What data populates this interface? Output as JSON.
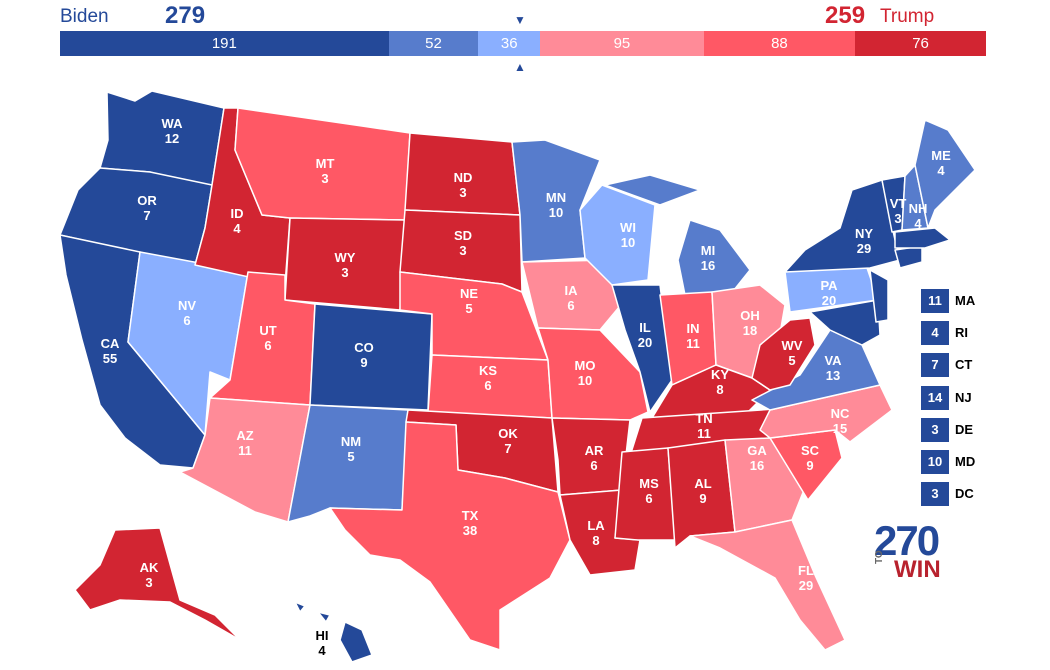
{
  "header": {
    "left_candidate": "Biden",
    "left_total": "279",
    "right_candidate": "Trump",
    "right_total": "259",
    "marker_top": "▼",
    "marker_bottom": "▲"
  },
  "colors": {
    "safe_d": "#244999",
    "likely_d": "#577CCC",
    "leans_d": "#8AAFFF",
    "leans_r": "#FF8B98",
    "likely_r": "#FF5865",
    "safe_r": "#D22532"
  },
  "bar": [
    {
      "label": "191",
      "value": 191,
      "category": "safe_d"
    },
    {
      "label": "52",
      "value": 52,
      "category": "likely_d"
    },
    {
      "label": "36",
      "value": 36,
      "category": "leans_d"
    },
    {
      "label": "95",
      "value": 95,
      "category": "leans_r"
    },
    {
      "label": "88",
      "value": 88,
      "category": "likely_r"
    },
    {
      "label": "76",
      "value": 76,
      "category": "safe_r"
    }
  ],
  "states": [
    {
      "abbr": "WA",
      "ev": "12",
      "category": "safe_d"
    },
    {
      "abbr": "OR",
      "ev": "7",
      "category": "safe_d"
    },
    {
      "abbr": "CA",
      "ev": "55",
      "category": "safe_d"
    },
    {
      "abbr": "NV",
      "ev": "6",
      "category": "leans_d"
    },
    {
      "abbr": "ID",
      "ev": "4",
      "category": "safe_r"
    },
    {
      "abbr": "MT",
      "ev": "3",
      "category": "likely_r"
    },
    {
      "abbr": "WY",
      "ev": "3",
      "category": "safe_r"
    },
    {
      "abbr": "UT",
      "ev": "6",
      "category": "likely_r"
    },
    {
      "abbr": "CO",
      "ev": "9",
      "category": "safe_d"
    },
    {
      "abbr": "AZ",
      "ev": "11",
      "category": "leans_r"
    },
    {
      "abbr": "NM",
      "ev": "5",
      "category": "likely_d"
    },
    {
      "abbr": "ND",
      "ev": "3",
      "category": "safe_r"
    },
    {
      "abbr": "SD",
      "ev": "3",
      "category": "safe_r"
    },
    {
      "abbr": "NE",
      "ev": "5",
      "category": "likely_r"
    },
    {
      "abbr": "KS",
      "ev": "6",
      "category": "likely_r"
    },
    {
      "abbr": "OK",
      "ev": "7",
      "category": "safe_r"
    },
    {
      "abbr": "TX",
      "ev": "38",
      "category": "likely_r"
    },
    {
      "abbr": "MN",
      "ev": "10",
      "category": "likely_d"
    },
    {
      "abbr": "IA",
      "ev": "6",
      "category": "leans_r"
    },
    {
      "abbr": "MO",
      "ev": "10",
      "category": "likely_r"
    },
    {
      "abbr": "AR",
      "ev": "6",
      "category": "safe_r"
    },
    {
      "abbr": "LA",
      "ev": "8",
      "category": "safe_r"
    },
    {
      "abbr": "WI",
      "ev": "10",
      "category": "leans_d"
    },
    {
      "abbr": "IL",
      "ev": "20",
      "category": "safe_d"
    },
    {
      "abbr": "MI",
      "ev": "16",
      "category": "likely_d"
    },
    {
      "abbr": "IN",
      "ev": "11",
      "category": "likely_r"
    },
    {
      "abbr": "OH",
      "ev": "18",
      "category": "leans_r"
    },
    {
      "abbr": "KY",
      "ev": "8",
      "category": "safe_r"
    },
    {
      "abbr": "TN",
      "ev": "11",
      "category": "safe_r"
    },
    {
      "abbr": "MS",
      "ev": "6",
      "category": "safe_r"
    },
    {
      "abbr": "AL",
      "ev": "9",
      "category": "safe_r"
    },
    {
      "abbr": "GA",
      "ev": "16",
      "category": "leans_r"
    },
    {
      "abbr": "FL",
      "ev": "29",
      "category": "leans_r"
    },
    {
      "abbr": "SC",
      "ev": "9",
      "category": "likely_r"
    },
    {
      "abbr": "NC",
      "ev": "15",
      "category": "leans_r"
    },
    {
      "abbr": "VA",
      "ev": "13",
      "category": "likely_d"
    },
    {
      "abbr": "WV",
      "ev": "5",
      "category": "safe_r"
    },
    {
      "abbr": "PA",
      "ev": "20",
      "category": "leans_d"
    },
    {
      "abbr": "NY",
      "ev": "29",
      "category": "safe_d"
    },
    {
      "abbr": "VT",
      "ev": "3",
      "category": "safe_d"
    },
    {
      "abbr": "NH",
      "ev": "4",
      "category": "likely_d"
    },
    {
      "abbr": "ME",
      "ev": "4",
      "category": "likely_d"
    },
    {
      "abbr": "AK",
      "ev": "3",
      "category": "safe_r"
    },
    {
      "abbr": "HI",
      "ev": "4",
      "category": "safe_d"
    }
  ],
  "small_states": [
    {
      "abbr": "MA",
      "ev": "11",
      "category": "safe_d"
    },
    {
      "abbr": "RI",
      "ev": "4",
      "category": "safe_d"
    },
    {
      "abbr": "CT",
      "ev": "7",
      "category": "safe_d"
    },
    {
      "abbr": "NJ",
      "ev": "14",
      "category": "safe_d"
    },
    {
      "abbr": "DE",
      "ev": "3",
      "category": "safe_d"
    },
    {
      "abbr": "MD",
      "ev": "10",
      "category": "safe_d"
    },
    {
      "abbr": "DC",
      "ev": "3",
      "category": "safe_d"
    }
  ],
  "logo": {
    "number": "270",
    "to": "TO",
    "win": "WIN"
  }
}
